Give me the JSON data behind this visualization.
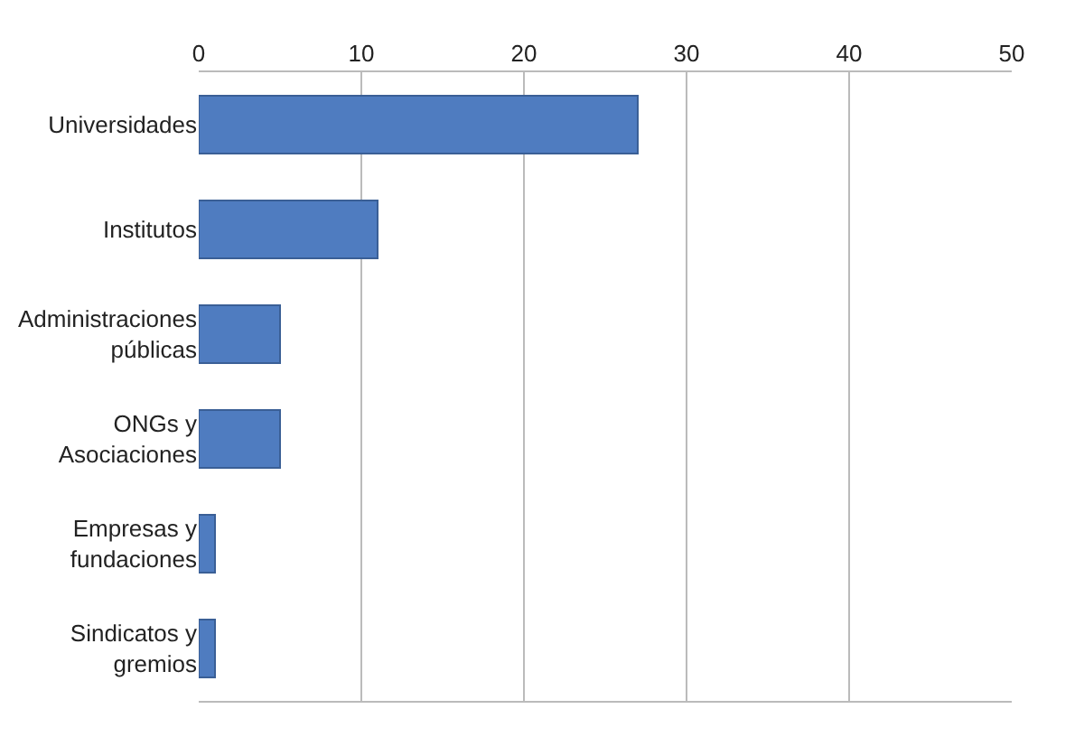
{
  "chart_data": {
    "type": "bar",
    "orientation": "horizontal",
    "categories": [
      "Universidades",
      "Institutos",
      "Administraciones\npúblicas",
      "ONGs y\nAsociaciones",
      "Empresas y\nfundaciones",
      "Sindicatos y\ngremios"
    ],
    "values": [
      27,
      11,
      5,
      5,
      1,
      1
    ],
    "color": "#4f7cc0",
    "xlim": [
      0,
      50
    ],
    "xticks": [
      0,
      10,
      20,
      30,
      40,
      50
    ],
    "grid": "x"
  }
}
